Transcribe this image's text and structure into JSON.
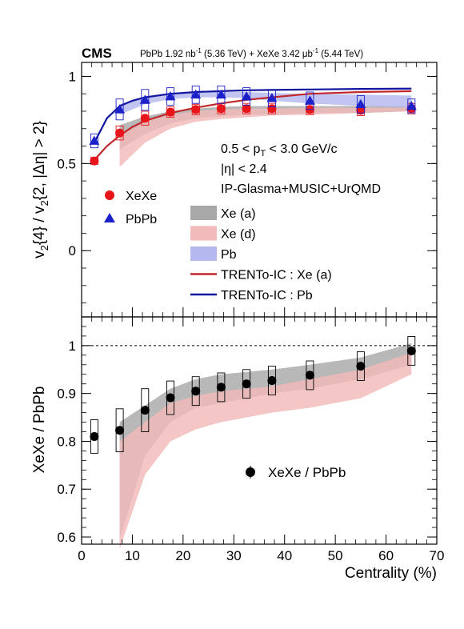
{
  "header": {
    "experiment": "CMS",
    "lumi_parts": [
      "PbPb 1.92 nb",
      "-1",
      " (5.36 TeV) + XeXe 3.42 μb",
      "-1",
      " (5.44 TeV)"
    ]
  },
  "annotations": {
    "line1_parts": [
      "0.5 < p",
      "T",
      " < 3.0 GeV/c"
    ],
    "line2": "|η| < 2.4",
    "line3": "IP-Glasma+MUSIC+UrQMD"
  },
  "chart_data": [
    {
      "type": "scatter",
      "panel": "top",
      "ylabel_parts": [
        "v",
        "2",
        "{4} / v",
        "2",
        "{2, |Δη| > 2}"
      ],
      "xlim": [
        0,
        70
      ],
      "ylim": [
        -0.38,
        1.08
      ],
      "y_ticks": [
        0,
        0.5,
        1
      ],
      "y_tick_labels": [
        "0",
        "0.5",
        "1"
      ],
      "series": [
        {
          "name": "XeXe",
          "marker": "circle",
          "color": "#e8161b",
          "x": [
            2.5,
            7.5,
            12.5,
            17.5,
            22.5,
            27.5,
            32.5,
            37.5,
            45,
            55,
            65
          ],
          "y": [
            0.515,
            0.675,
            0.76,
            0.795,
            0.81,
            0.815,
            0.815,
            0.815,
            0.81,
            0.805,
            0.815
          ],
          "sys": [
            0.02,
            0.04,
            0.04,
            0.03,
            0.03,
            0.03,
            0.03,
            0.03,
            0.03,
            0.03,
            0.03
          ]
        },
        {
          "name": "PbPb",
          "marker": "triangle",
          "color": "#1c20c9",
          "x": [
            2.5,
            7.5,
            12.5,
            17.5,
            22.5,
            27.5,
            32.5,
            37.5,
            45,
            55,
            65
          ],
          "y": [
            0.63,
            0.81,
            0.865,
            0.885,
            0.895,
            0.895,
            0.885,
            0.875,
            0.86,
            0.84,
            0.83
          ],
          "sys": [
            0.04,
            0.06,
            0.06,
            0.05,
            0.05,
            0.05,
            0.05,
            0.05,
            0.05,
            0.05,
            0.04
          ]
        }
      ],
      "bands": [
        {
          "name": "Xe (a)",
          "color": "#a8a8a8",
          "x": [
            7.5,
            12.5,
            17.5,
            22.5,
            27.5,
            32.5,
            37.5,
            45,
            55,
            65
          ],
          "low": [
            0.58,
            0.67,
            0.73,
            0.76,
            0.77,
            0.78,
            0.78,
            0.79,
            0.79,
            0.8
          ],
          "high": [
            0.72,
            0.77,
            0.8,
            0.815,
            0.825,
            0.83,
            0.83,
            0.83,
            0.83,
            0.83
          ]
        },
        {
          "name": "Xe (d)",
          "color": "#f2baba",
          "x": [
            7.5,
            12.5,
            17.5,
            22.5,
            27.5,
            32.5,
            37.5,
            45,
            55,
            65
          ],
          "low": [
            0.48,
            0.62,
            0.7,
            0.74,
            0.755,
            0.765,
            0.775,
            0.78,
            0.79,
            0.8
          ],
          "high": [
            0.66,
            0.74,
            0.78,
            0.8,
            0.81,
            0.815,
            0.815,
            0.82,
            0.82,
            0.82
          ]
        },
        {
          "name": "Pb",
          "color": "#b4b8ee",
          "x": [
            7.5,
            12.5,
            17.5,
            22.5,
            27.5,
            32.5,
            37.5,
            45,
            55,
            65
          ],
          "low": [
            0.78,
            0.84,
            0.87,
            0.88,
            0.88,
            0.875,
            0.86,
            0.845,
            0.83,
            0.82
          ],
          "high": [
            0.84,
            0.88,
            0.9,
            0.905,
            0.91,
            0.91,
            0.905,
            0.9,
            0.895,
            0.89
          ]
        }
      ],
      "lines": [
        {
          "name": "TRENTo-IC : Xe (a)",
          "color": "#c0282b",
          "x": [
            2.5,
            5,
            7.5,
            10,
            12.5,
            17.5,
            22.5,
            27.5,
            32.5,
            37.5,
            45,
            55,
            65
          ],
          "y": [
            0.52,
            0.6,
            0.66,
            0.71,
            0.745,
            0.79,
            0.82,
            0.845,
            0.865,
            0.88,
            0.9,
            0.91,
            0.915
          ]
        },
        {
          "name": "TRENTo-IC : Pb",
          "color": "#10149e",
          "x": [
            2.5,
            5,
            7.5,
            10,
            12.5,
            17.5,
            22.5,
            27.5,
            32.5,
            37.5,
            45,
            55,
            65
          ],
          "y": [
            0.62,
            0.76,
            0.83,
            0.86,
            0.88,
            0.9,
            0.91,
            0.915,
            0.92,
            0.922,
            0.925,
            0.928,
            0.93
          ]
        }
      ],
      "legend_left": [
        {
          "label": "XeXe",
          "marker": "circle",
          "color": "#e8161b"
        },
        {
          "label": "PbPb",
          "marker": "triangle",
          "color": "#1c20c9"
        }
      ],
      "legend_right": [
        {
          "label": "Xe (a)",
          "kind": "box",
          "color": "#a8a8a8"
        },
        {
          "label": "Xe (d)",
          "kind": "box",
          "color": "#f2baba"
        },
        {
          "label": "Pb",
          "kind": "box",
          "color": "#b4b8ee"
        },
        {
          "label": "TRENTo-IC : Xe (a)",
          "kind": "line",
          "color": "#c0282b"
        },
        {
          "label": "TRENTo-IC : Pb",
          "kind": "line",
          "color": "#10149e"
        }
      ]
    },
    {
      "type": "scatter",
      "panel": "bottom",
      "ylabel": "XeXe / PbPb",
      "xlabel": "Centrality (%)",
      "xlim": [
        0,
        70
      ],
      "ylim": [
        0.585,
        1.06
      ],
      "x_ticks": [
        0,
        10,
        20,
        30,
        40,
        50,
        60,
        70
      ],
      "x_tick_labels": [
        "0",
        "10",
        "20",
        "30",
        "40",
        "50",
        "60",
        "70"
      ],
      "y_ticks": [
        0.6,
        0.7,
        0.8,
        0.9,
        1
      ],
      "y_tick_labels": [
        "0.6",
        "0.7",
        "0.8",
        "0.9",
        "1"
      ],
      "reference_line": 1,
      "series": [
        {
          "name": "XeXe / PbPb",
          "marker": "circle",
          "color": "#000000",
          "x": [
            2.5,
            7.5,
            12.5,
            17.5,
            22.5,
            27.5,
            32.5,
            37.5,
            45,
            55,
            65
          ],
          "y": [
            0.81,
            0.823,
            0.865,
            0.891,
            0.905,
            0.913,
            0.92,
            0.927,
            0.938,
            0.957,
            0.989
          ],
          "sys": [
            0.035,
            0.045,
            0.045,
            0.035,
            0.03,
            0.03,
            0.03,
            0.03,
            0.03,
            0.03,
            0.03
          ]
        }
      ],
      "bands": [
        {
          "name": "Xe (a)",
          "color": "#a8a8a8",
          "x": [
            7.5,
            12.5,
            17.5,
            22.5,
            27.5,
            32.5,
            37.5,
            45,
            55,
            65
          ],
          "low": [
            0.595,
            0.77,
            0.84,
            0.87,
            0.88,
            0.89,
            0.9,
            0.91,
            0.93,
            0.96
          ],
          "high": [
            0.84,
            0.875,
            0.91,
            0.93,
            0.94,
            0.945,
            0.95,
            0.96,
            0.975,
            1.005
          ]
        },
        {
          "name": "Xe (d)",
          "color": "#f2baba",
          "x": [
            7.5,
            12.5,
            17.5,
            22.5,
            27.5,
            32.5,
            37.5,
            45,
            55,
            65
          ],
          "low": [
            0.575,
            0.73,
            0.8,
            0.825,
            0.84,
            0.85,
            0.86,
            0.87,
            0.89,
            0.94
          ],
          "high": [
            0.8,
            0.84,
            0.88,
            0.895,
            0.905,
            0.91,
            0.915,
            0.93,
            0.95,
            0.985
          ]
        }
      ],
      "legend": [
        {
          "label": "XeXe / PbPb",
          "marker": "circle",
          "color": "#000000"
        }
      ]
    }
  ]
}
